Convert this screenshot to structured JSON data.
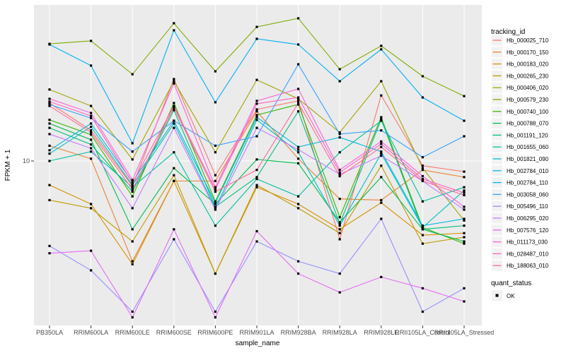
{
  "chart": {
    "y_tick_label": "10",
    "ylabel": "FPKM + 1",
    "xlabel": "sample_name",
    "legend_tracking_title": "tracking_id",
    "legend_quant_title": "quant_status",
    "legend_quant_ok": "OK",
    "panel_bg": "#EBEBEB",
    "gridline_color": "#FFFFFF",
    "tick_text_color": "#4D4D4D",
    "point_color": "#000000",
    "legend_key_bg": "#F2F2F2"
  },
  "chart_data": {
    "type": "line",
    "title": "",
    "xlabel": "sample_name",
    "ylabel": "FPKM + 1",
    "y_scale": "log10",
    "y_ticks": [
      10
    ],
    "ylim": [
      1.17,
      76
    ],
    "grid": "white major gridlines on gray panel",
    "legend_position": "right",
    "legend_title": "tracking_id",
    "point_legend": {
      "title": "quant_status",
      "items": [
        "OK"
      ],
      "marker": "black-square"
    },
    "categories": [
      "PB350LA",
      "RRIM600LA",
      "RRIM600LE",
      "RRIM600SE",
      "RRIM600PE",
      "RRIM901LA",
      "RRIM928BA",
      "RRIM928LA",
      "RRIM928LE",
      "RRII105LA_Control",
      "RRII105LA_Stressed"
    ],
    "series": [
      {
        "name": "Hb_000025_710",
        "color": "#F8766D",
        "values": [
          21.3,
          14.9,
          7.2,
          29.1,
          8.3,
          19.6,
          21.9,
          3.6,
          23.5,
          9.4,
          8.7
        ]
      },
      {
        "name": "Hb_000170_150",
        "color": "#EA8331",
        "values": [
          12.2,
          10.3,
          2.7,
          7.7,
          7.7,
          19.1,
          10.3,
          6.1,
          6.0,
          8.9,
          8.1
        ]
      },
      {
        "name": "Hb_000183_020",
        "color": "#D89000",
        "values": [
          7.3,
          5.7,
          2.6,
          7.7,
          2.3,
          7.1,
          5.7,
          4.1,
          5.8,
          3.8,
          3.9
        ]
      },
      {
        "name": "Hb_000265_230",
        "color": "#C09B00",
        "values": [
          6.0,
          5.4,
          3.5,
          8.3,
          2.3,
          7.3,
          5.4,
          3.9,
          9.4,
          3.4,
          3.7
        ]
      },
      {
        "name": "Hb_000406_020",
        "color": "#A3A500",
        "values": [
          25.4,
          20.5,
          10.2,
          28.3,
          11.2,
          28.8,
          22.5,
          14.5,
          28.3,
          9.1,
          4.6
        ]
      },
      {
        "name": "Hb_000579_230",
        "color": "#7CAE00",
        "values": [
          46.1,
          47.9,
          31.0,
          60.3,
          32.2,
          57.5,
          64.3,
          33.1,
          44.9,
          30.2,
          23.3
        ]
      },
      {
        "name": "Hb_000740_100",
        "color": "#39B600",
        "values": [
          17.1,
          14.1,
          6.3,
          21.3,
          5.9,
          18.2,
          20.9,
          4.8,
          17.7,
          4.2,
          3.4
        ]
      },
      {
        "name": "Hb_000788_070",
        "color": "#00BB4E",
        "values": [
          16.3,
          13.2,
          4.1,
          9.1,
          5.7,
          10.2,
          9.7,
          4.5,
          8.1,
          4.1,
          3.5
        ]
      },
      {
        "name": "Hb_001191_120",
        "color": "#00BF7D",
        "values": [
          15.4,
          12.4,
          6.7,
          19.4,
          5.5,
          8.1,
          19.1,
          4.4,
          17.2,
          4.1,
          4.3
        ]
      },
      {
        "name": "Hb_001655_060",
        "color": "#00C1A3",
        "values": [
          10.0,
          11.3,
          7.1,
          11.2,
          4.3,
          7.9,
          6.3,
          11.2,
          16.9,
          5.9,
          7.1
        ]
      },
      {
        "name": "Hb_001821_090",
        "color": "#00BFC4",
        "values": [
          11.0,
          15.6,
          7.3,
          16.3,
          5.4,
          17.1,
          11.2,
          4.3,
          11.0,
          4.2,
          6.8
        ]
      },
      {
        "name": "Hb_002784_010",
        "color": "#00BAE0",
        "values": [
          11.5,
          16.3,
          7.6,
          16.9,
          5.8,
          17.7,
          12.0,
          13.6,
          11.3,
          4.3,
          4.7
        ]
      },
      {
        "name": "Hb_002784_110",
        "color": "#00B0F6",
        "values": [
          45.7,
          34.7,
          12.6,
          55.0,
          21.5,
          49.2,
          45.7,
          28.3,
          42.9,
          22.9,
          16.9
        ]
      },
      {
        "name": "Hb_003058_060",
        "color": "#35A2FF",
        "values": [
          20.9,
          17.5,
          11.3,
          16.9,
          12.2,
          13.8,
          35.3,
          14.2,
          14.9,
          10.5,
          13.8
        ]
      },
      {
        "name": "Hb_005496_110",
        "color": "#9590FF",
        "values": [
          3.3,
          2.4,
          1.4,
          3.6,
          1.4,
          3.5,
          2.7,
          2.3,
          4.7,
          1.4,
          1.9
        ]
      },
      {
        "name": "Hb_006295_020",
        "color": "#C77CFF",
        "values": [
          14.2,
          11.8,
          5.4,
          15.4,
          5.3,
          15.4,
          11.6,
          8.4,
          10.7,
          7.7,
          5.3
        ]
      },
      {
        "name": "Hb_007576_120",
        "color": "#E76BF3",
        "values": [
          3.0,
          3.1,
          1.3,
          4.1,
          1.3,
          4.0,
          2.3,
          1.8,
          2.2,
          1.9,
          1.6
        ]
      },
      {
        "name": "Hb_011173_030",
        "color": "#FA62DB",
        "values": [
          22.5,
          18.7,
          7.8,
          27.5,
          7.1,
          21.9,
          25.6,
          8.9,
          12.9,
          8.2,
          5.5
        ]
      },
      {
        "name": "Hb_028487_010",
        "color": "#FF62BC",
        "values": [
          21.7,
          18.0,
          7.5,
          20.5,
          6.9,
          21.1,
          22.9,
          8.6,
          12.5,
          7.9,
          6.6
        ]
      },
      {
        "name": "Hb_188063_010",
        "color": "#FF6A98",
        "values": [
          20.5,
          14.5,
          6.9,
          20.0,
          6.7,
          8.9,
          21.3,
          8.2,
          12.0,
          7.7,
          6.4
        ]
      }
    ]
  }
}
